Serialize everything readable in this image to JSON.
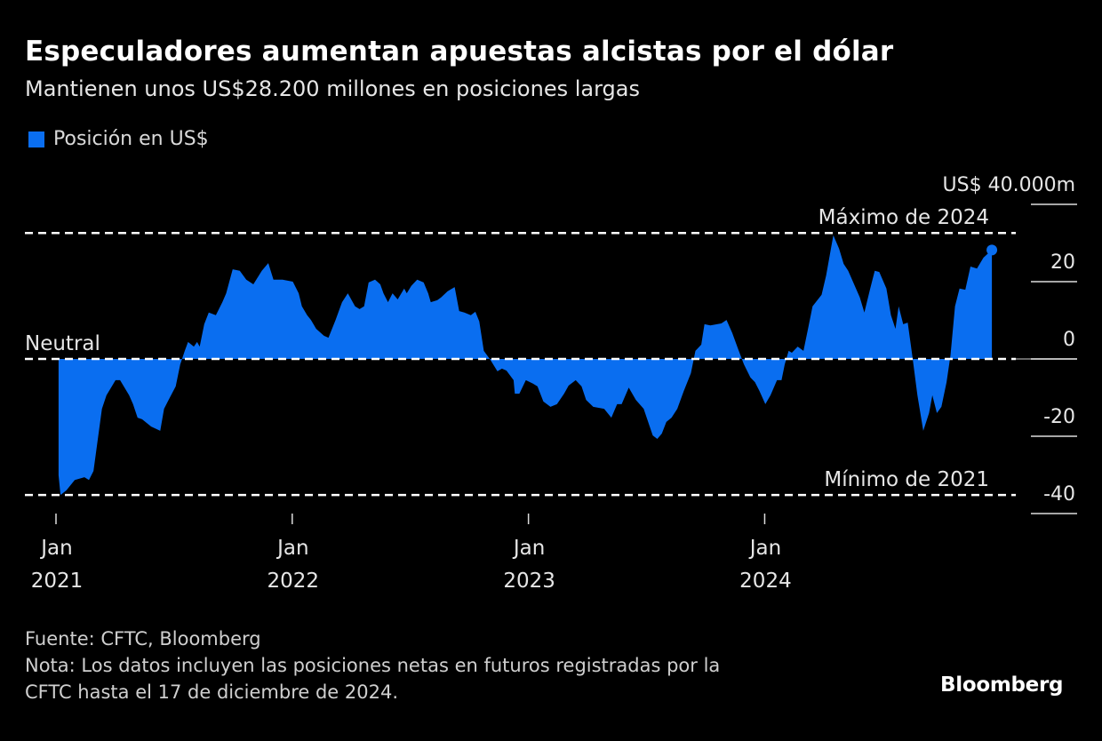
{
  "title": "Especuladores aumentan apuestas alcistas por el dólar",
  "subtitle": "Mantienen unos US$28.200 millones en posiciones largas",
  "footer": {
    "source": "Fuente: CFTC, Bloomberg",
    "note_line1": "Nota: Los datos incluyen las posiciones netas en futuros registradas por la",
    "note_line2": "CFTC hasta el 17 de diciembre de 2024."
  },
  "logo": "Bloomberg",
  "colors": {
    "series": "#0a6ef0",
    "background": "#000000",
    "reference_lines": "#ffffff"
  },
  "chart_data": {
    "type": "area",
    "legend": [
      {
        "label": "Posición en US$",
        "color": "#0a6ef0"
      }
    ],
    "legend_placement": "top-left",
    "y_unit_label": "US$ 40.000m",
    "ylim": [
      -40,
      40
    ],
    "y_ticks": [
      {
        "value": 40,
        "label": "US$ 40.000m"
      },
      {
        "value": 20,
        "label": "20"
      },
      {
        "value": 0,
        "label": "0"
      },
      {
        "value": -20,
        "label": "-20"
      },
      {
        "value": -40,
        "label": "-40"
      }
    ],
    "x_ticks": [
      {
        "date": "2021-01-01",
        "month": "Jan",
        "year": "2021"
      },
      {
        "date": "2022-01-01",
        "month": "Jan",
        "year": "2022"
      },
      {
        "date": "2023-01-01",
        "month": "Jan",
        "year": "2023"
      },
      {
        "date": "2024-01-01",
        "month": "Jan",
        "year": "2024"
      }
    ],
    "grid": false,
    "reference_lines": [
      {
        "label": "Máximo de 2024",
        "value": 32.6
      },
      {
        "label": "Neutral",
        "value": 0
      },
      {
        "label": "Mínimo de 2021",
        "value": -35.2
      }
    ],
    "series": [
      {
        "name": "Posición en US$",
        "x": [
          "2021-01-05",
          "2021-01-08",
          "2021-01-17",
          "2021-01-30",
          "2021-02-14",
          "2021-02-21",
          "2021-02-28",
          "2021-03-13",
          "2021-03-20",
          "2021-04-03",
          "2021-04-10",
          "2021-04-24",
          "2021-04-30",
          "2021-05-07",
          "2021-05-14",
          "2021-05-28",
          "2021-06-11",
          "2021-06-17",
          "2021-06-24",
          "2021-07-05",
          "2021-07-12",
          "2021-07-19",
          "2021-07-24",
          "2021-08-02",
          "2021-08-07",
          "2021-08-11",
          "2021-08-18",
          "2021-08-25",
          "2021-09-05",
          "2021-09-15",
          "2021-09-21",
          "2021-10-01",
          "2021-10-12",
          "2021-10-22",
          "2021-11-02",
          "2021-11-15",
          "2021-11-25",
          "2021-12-03",
          "2021-12-17",
          "2022-01-02",
          "2022-01-11",
          "2022-01-16",
          "2022-01-24",
          "2022-01-30",
          "2022-02-07",
          "2022-02-19",
          "2022-02-26",
          "2022-03-09",
          "2022-03-19",
          "2022-03-28",
          "2022-04-08",
          "2022-04-15",
          "2022-04-22",
          "2022-04-29",
          "2022-05-09",
          "2022-05-17",
          "2022-05-22",
          "2022-05-29",
          "2022-06-05",
          "2022-06-13",
          "2022-06-23",
          "2022-06-27",
          "2022-07-04",
          "2022-07-13",
          "2022-07-23",
          "2022-07-30",
          "2022-08-03",
          "2022-08-13",
          "2022-08-19",
          "2022-08-29",
          "2022-09-09",
          "2022-09-16",
          "2022-09-24",
          "2022-10-04",
          "2022-10-11",
          "2022-10-17",
          "2022-10-24",
          "2022-11-03",
          "2022-11-14",
          "2022-11-21",
          "2022-11-28",
          "2022-12-09",
          "2022-12-11",
          "2022-12-18",
          "2022-12-28",
          "2023-01-08",
          "2023-01-15",
          "2023-01-24",
          "2023-02-04",
          "2023-02-14",
          "2023-02-25",
          "2023-03-04",
          "2023-03-15",
          "2023-03-24",
          "2023-03-31",
          "2023-04-11",
          "2023-04-28",
          "2023-05-09",
          "2023-05-18",
          "2023-05-25",
          "2023-06-05",
          "2023-06-16",
          "2023-06-28",
          "2023-07-12",
          "2023-07-19",
          "2023-07-26",
          "2023-08-02",
          "2023-08-10",
          "2023-08-19",
          "2023-08-29",
          "2023-09-09",
          "2023-09-16",
          "2023-09-25",
          "2023-09-30",
          "2023-10-09",
          "2023-10-26",
          "2023-11-03",
          "2023-11-12",
          "2023-11-22",
          "2023-11-30",
          "2023-12-10",
          "2023-12-17",
          "2023-12-24",
          "2024-01-02",
          "2024-01-10",
          "2024-01-20",
          "2024-01-27",
          "2024-02-01",
          "2024-02-07",
          "2024-02-12",
          "2024-02-21",
          "2024-03-01",
          "2024-03-08",
          "2024-03-15",
          "2024-03-29",
          "2024-04-05",
          "2024-04-16",
          "2024-04-25",
          "2024-05-02",
          "2024-05-09",
          "2024-05-27",
          "2024-06-03",
          "2024-06-12",
          "2024-06-19",
          "2024-06-26",
          "2024-07-07",
          "2024-07-14",
          "2024-07-21",
          "2024-07-26",
          "2024-08-02",
          "2024-08-09",
          "2024-08-16",
          "2024-08-24",
          "2024-09-02",
          "2024-09-11",
          "2024-09-16",
          "2024-09-23",
          "2024-09-30",
          "2024-10-08",
          "2024-10-14",
          "2024-10-21",
          "2024-10-28",
          "2024-11-06",
          "2024-11-14",
          "2024-11-24",
          "2024-12-04",
          "2024-12-17"
        ],
        "values": [
          -30.1,
          -35.2,
          -34.0,
          -31.3,
          -30.6,
          -31.3,
          -29.0,
          -12.9,
          -9.4,
          -5.5,
          -5.5,
          -9.4,
          -11.7,
          -15.2,
          -15.6,
          -17.5,
          -18.6,
          -12.9,
          -10.6,
          -7.1,
          -1.4,
          2.1,
          4.4,
          3.2,
          4.4,
          3.2,
          9.0,
          12.0,
          11.3,
          14.7,
          17.0,
          23.2,
          22.8,
          20.5,
          19.3,
          22.8,
          24.8,
          20.5,
          20.5,
          20.0,
          17.0,
          13.6,
          11.3,
          10.1,
          7.8,
          6.0,
          5.5,
          10.1,
          14.7,
          17.0,
          13.6,
          12.9,
          13.6,
          19.8,
          20.5,
          19.3,
          17.0,
          14.7,
          17.0,
          15.4,
          18.2,
          17.0,
          18.9,
          20.5,
          19.8,
          17.0,
          14.7,
          15.2,
          15.9,
          17.5,
          18.6,
          12.4,
          12.0,
          11.3,
          12.2,
          9.7,
          2.1,
          -0.2,
          -3.2,
          -2.5,
          -3.0,
          -5.5,
          -9.0,
          -9.0,
          -5.5,
          -6.4,
          -7.1,
          -11.0,
          -12.4,
          -11.7,
          -9.0,
          -6.9,
          -5.5,
          -7.1,
          -10.6,
          -12.4,
          -12.9,
          -15.2,
          -11.7,
          -11.7,
          -7.4,
          -10.6,
          -12.9,
          -19.8,
          -20.7,
          -19.3,
          -16.3,
          -15.2,
          -12.9,
          -8.3,
          -3.7,
          2.1,
          3.7,
          9.0,
          8.7,
          9.2,
          10.1,
          6.7,
          2.1,
          -1.4,
          -4.8,
          -6.0,
          -8.3,
          -11.7,
          -9.4,
          -5.5,
          -5.5,
          -1.4,
          2.1,
          1.6,
          3.2,
          2.1,
          7.8,
          13.6,
          16.6,
          21.6,
          32.0,
          28.5,
          24.6,
          22.8,
          15.9,
          12.0,
          18.2,
          22.8,
          22.5,
          18.2,
          11.3,
          7.8,
          13.6,
          9.0,
          9.4,
          0.9,
          -9.4,
          -18.6,
          -14.0,
          -9.4,
          -14.0,
          -12.4,
          -6.0,
          0.9,
          13.6,
          18.2,
          17.9,
          23.9,
          23.4,
          26.2,
          28.2
        ]
      }
    ]
  }
}
